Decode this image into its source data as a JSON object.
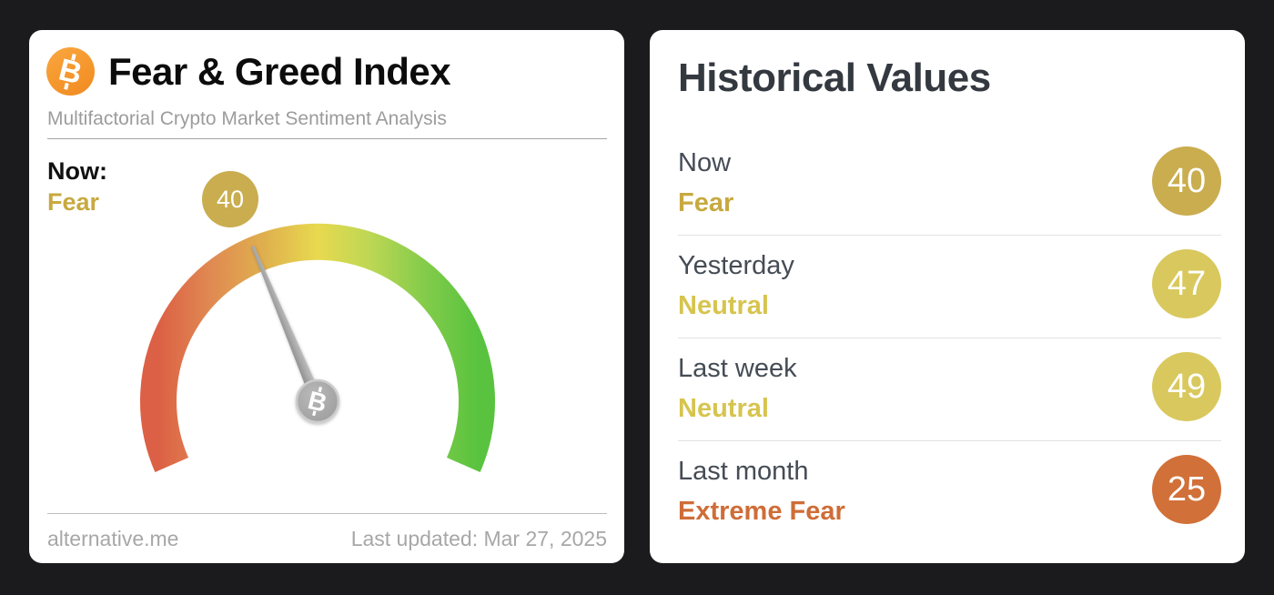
{
  "theme": {
    "page_bg": "#1b1b1d",
    "card_bg": "#ffffff",
    "gold": "#c7a93f",
    "yellow": "#d6c44e",
    "orange": "#cf6d37",
    "bitcoin_orange": "#f5941f",
    "needle_gray": "#9d9d9d"
  },
  "left_card": {
    "title": "Fear & Greed Index",
    "subtitle": "Multifactorial Crypto Market Sentiment Analysis",
    "now_label": "Now:",
    "now_sentiment": "Fear",
    "now_value": "40",
    "badge_color": "#c9ad4f",
    "sentiment_color": "#c7a93f",
    "footer_source": "alternative.me",
    "footer_updated": "Last updated: Mar 27, 2025",
    "icons": {
      "header": "bitcoin-icon",
      "hub": "bitcoin-icon"
    }
  },
  "gauge": {
    "value": 40,
    "min": 0,
    "max": 100,
    "start_angle_deg": 203.6,
    "sweep_deg": 227.2,
    "band_colors": [
      "#dc6045",
      "#e08a52",
      "#dfb04e",
      "#e8d94f",
      "#bcd754",
      "#84cc4b",
      "#59c33f"
    ]
  },
  "right_card": {
    "title": "Historical Values",
    "rows": [
      {
        "label": "Now",
        "sentiment": "Fear",
        "value": "40",
        "sentiment_color": "#c7a93f",
        "badge_color": "#c9ad4f"
      },
      {
        "label": "Yesterday",
        "sentiment": "Neutral",
        "value": "47",
        "sentiment_color": "#d6c44e",
        "badge_color": "#d9c85e"
      },
      {
        "label": "Last week",
        "sentiment": "Neutral",
        "value": "49",
        "sentiment_color": "#d6c44e",
        "badge_color": "#d9c85e"
      },
      {
        "label": "Last month",
        "sentiment": "Extreme Fear",
        "value": "25",
        "sentiment_color": "#cf6d37",
        "badge_color": "#d17038"
      }
    ]
  },
  "chart_data": {
    "type": "gauge",
    "title": "Fear & Greed Index",
    "subtitle": "Multifactorial Crypto Market Sentiment Analysis",
    "value": 40,
    "classification": "Fear",
    "min": 0,
    "max": 100,
    "scale_colors_low_to_high": [
      "red",
      "orange",
      "yellow",
      "green"
    ],
    "last_updated": "Last updated: Mar 27, 2025",
    "source": "alternative.me",
    "historical": [
      {
        "period": "Now",
        "classification": "Fear",
        "value": 40
      },
      {
        "period": "Yesterday",
        "classification": "Neutral",
        "value": 47
      },
      {
        "period": "Last week",
        "classification": "Neutral",
        "value": 49
      },
      {
        "period": "Last month",
        "classification": "Extreme Fear",
        "value": 25
      }
    ]
  }
}
